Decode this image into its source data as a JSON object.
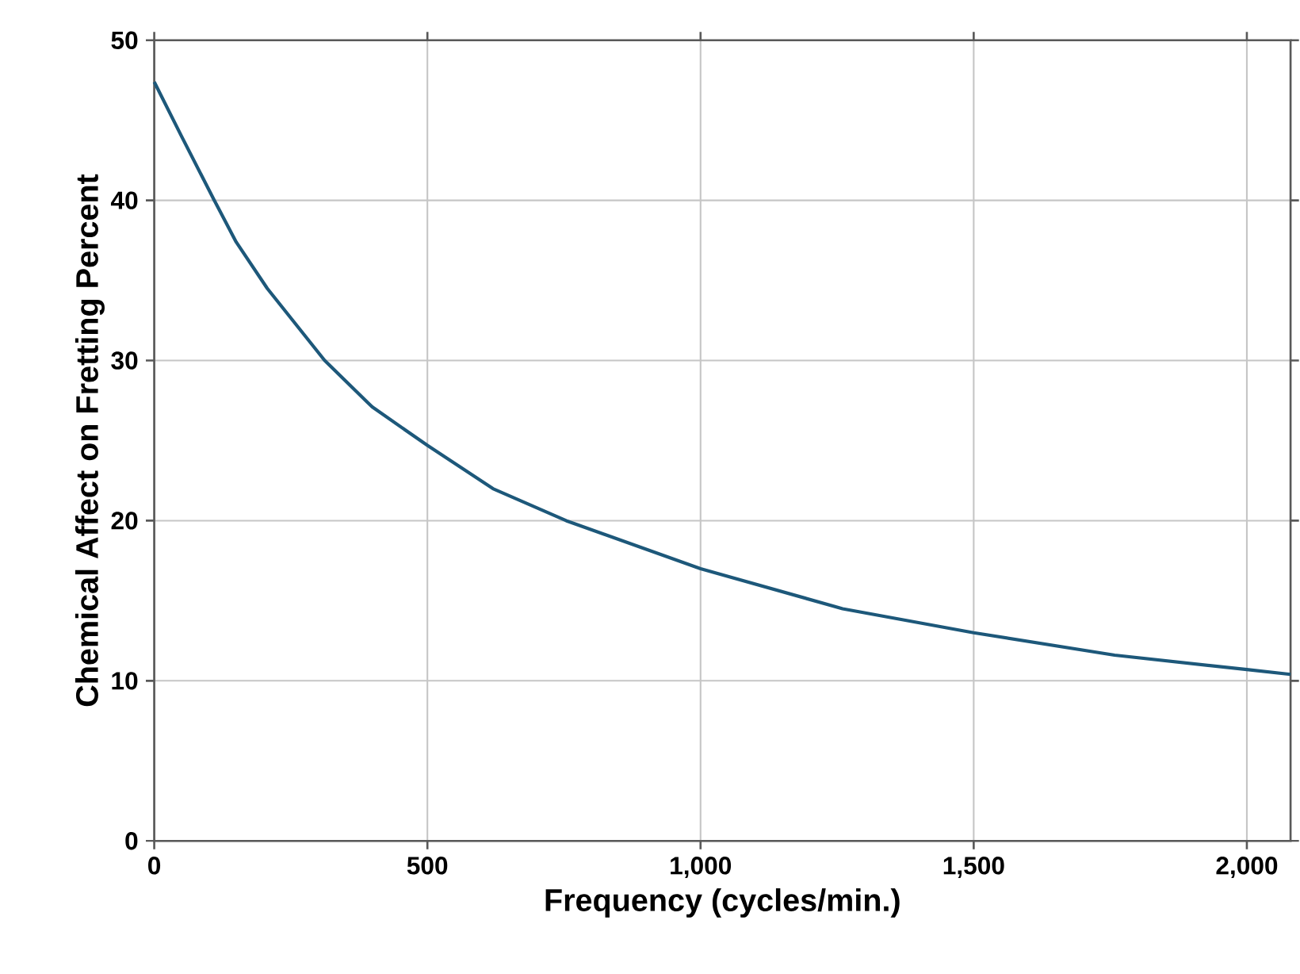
{
  "chart_data": {
    "type": "line",
    "xlabel": "Frequency (cycles/min.)",
    "ylabel": "Chemical Affect on Fretting Percent",
    "xlim": [
      0,
      2080
    ],
    "ylim": [
      0,
      50
    ],
    "xticks": [
      0,
      500,
      {
        "value": 1000,
        "label": "1,000"
      },
      {
        "value": 1500,
        "label": "1,500"
      },
      {
        "value": 2000,
        "label": "2,000"
      }
    ],
    "yticks": [
      0,
      10,
      20,
      30,
      40,
      50
    ],
    "grid": true,
    "series": [
      {
        "color": "#1d587a",
        "x": [
          0,
          50,
          110,
          150,
          207,
          312,
          399,
          500,
          620,
          754,
          1000,
          1260,
          1500,
          1758,
          2000,
          2080
        ],
        "values": [
          47.4,
          44,
          40,
          37.4,
          34.5,
          30,
          27.1,
          24.7,
          22,
          20,
          17,
          14.5,
          13,
          11.6,
          10.7,
          10.4
        ]
      }
    ]
  }
}
